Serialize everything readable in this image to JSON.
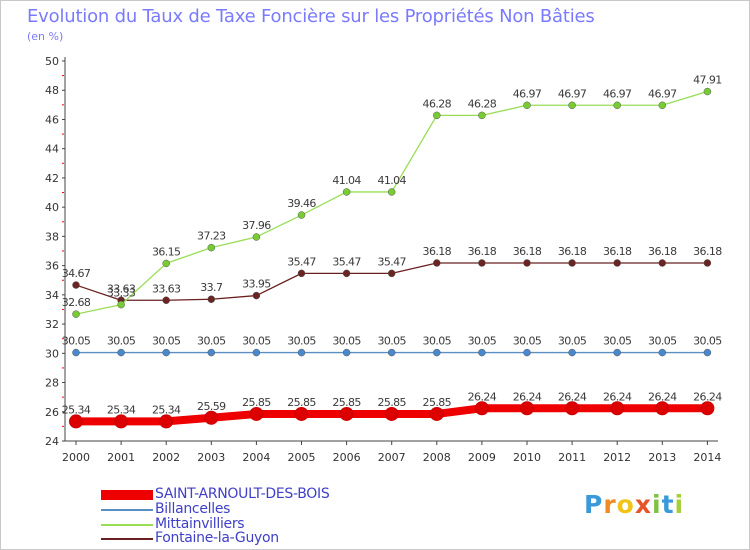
{
  "title": "Evolution du Taux de Taxe Foncière sur les Propriétés Non Bâties",
  "unit_label": "(en %)",
  "chart_data": {
    "type": "line",
    "title": "Evolution du Taux de Taxe Foncière sur les Propriétés Non Bâties",
    "ylabel": "(en %)",
    "xlabel": "",
    "ylim": [
      24,
      50
    ],
    "yticks": [
      "24",
      "26",
      "28",
      "30",
      "32",
      "34",
      "36",
      "38",
      "40",
      "42",
      "44",
      "46",
      "48",
      "50"
    ],
    "categories": [
      "2000",
      "2001",
      "2002",
      "2003",
      "2004",
      "2005",
      "2006",
      "2007",
      "2008",
      "2009",
      "2010",
      "2011",
      "2012",
      "2013",
      "2014"
    ],
    "series": [
      {
        "name": "SAINT-ARNOULT-DES-BOIS",
        "color": "#ee0000",
        "marker_color": "#dd0000",
        "values": [
          25.34,
          25.34,
          25.34,
          25.59,
          25.85,
          25.85,
          25.85,
          25.85,
          25.85,
          26.24,
          26.24,
          26.24,
          26.24,
          26.24,
          26.24
        ],
        "labels": [
          "25.34",
          "25.34",
          "25.34",
          "25.59",
          "25.85",
          "25.85",
          "25.85",
          "25.85",
          "25.85",
          "26.24",
          "26.24",
          "26.24",
          "26.24",
          "26.24",
          "26.24"
        ]
      },
      {
        "name": "Billancelles",
        "color": "#5b8ec2",
        "marker_color": "#4a88cc",
        "values": [
          30.05,
          30.05,
          30.05,
          30.05,
          30.05,
          30.05,
          30.05,
          30.05,
          30.05,
          30.05,
          30.05,
          30.05,
          30.05,
          30.05,
          30.05
        ],
        "labels": [
          "30.05",
          "30.05",
          "30.05",
          "30.05",
          "30.05",
          "30.05",
          "30.05",
          "30.05",
          "30.05",
          "30.05",
          "30.05",
          "30.05",
          "30.05",
          "30.05",
          "30.05"
        ]
      },
      {
        "name": "Mittainvilliers",
        "color": "#99dd55",
        "marker_color": "#77cc33",
        "values": [
          32.68,
          33.33,
          36.15,
          37.23,
          37.96,
          39.46,
          41.04,
          41.04,
          46.28,
          46.28,
          46.97,
          46.97,
          46.97,
          46.97,
          47.91
        ],
        "labels": [
          "32.68",
          "33.33",
          "36.15",
          "37.23",
          "37.96",
          "39.46",
          "41.04",
          "41.04",
          "46.28",
          "46.28",
          "46.97",
          "46.97",
          "46.97",
          "46.97",
          "47.91"
        ]
      },
      {
        "name": "Fontaine-la-Guyon",
        "color": "#6a2020",
        "marker_color": "#6a2424",
        "values": [
          34.67,
          33.63,
          33.63,
          33.7,
          33.95,
          35.47,
          35.47,
          35.47,
          36.18,
          36.18,
          36.18,
          36.18,
          36.18,
          36.18,
          36.18
        ],
        "labels": [
          "34.67",
          "33.63",
          "33.63",
          "33.7",
          "33.95",
          "35.47",
          "35.47",
          "35.47",
          "36.18",
          "36.18",
          "36.18",
          "36.18",
          "36.18",
          "36.18",
          "36.18"
        ]
      }
    ],
    "grid": false,
    "legend_position": "bottom-left"
  },
  "legend": {
    "items": [
      {
        "label": "SAINT-ARNOULT-DES-BOIS",
        "color": "#ee0000"
      },
      {
        "label": "Billancelles",
        "color": "#5b8ec2"
      },
      {
        "label": "Mittainvilliers",
        "color": "#99dd55"
      },
      {
        "label": "Fontaine-la-Guyon",
        "color": "#6a2020"
      }
    ]
  },
  "logo": {
    "letters": [
      "P",
      "r",
      "o",
      "x",
      "i",
      "t",
      "i"
    ],
    "colors": [
      "#3a9ad9",
      "#f08a24",
      "#f0c419",
      "#e8542a",
      "#7fc241",
      "#3a9ad9",
      "#a6cf3a"
    ]
  }
}
